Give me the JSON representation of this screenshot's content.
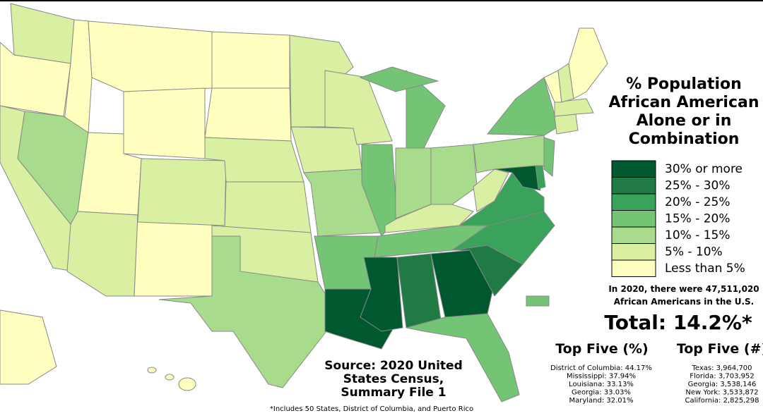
{
  "title_lines": [
    "% Population",
    "African American",
    "Alone or in",
    "Combination"
  ],
  "legend": [
    {
      "label": "30% or more",
      "color": "#00582f"
    },
    {
      "label": "25% - 30%",
      "color": "#1f7a44"
    },
    {
      "label": "20% - 25%",
      "color": "#3aa35b"
    },
    {
      "label": "15% - 20%",
      "color": "#74c476"
    },
    {
      "label": "10% - 15%",
      "color": "#a8dc8c"
    },
    {
      "label": "5% - 10%",
      "color": "#d9f0a3"
    },
    {
      "label": "Less than 5%",
      "color": "#ffffbf"
    }
  ],
  "note_lines": [
    "In 2020, there were 47,511,020",
    "African Americans in the U.S."
  ],
  "total": "Total: 14.2%*",
  "top_percent": {
    "title": "Top Five (%)",
    "items": [
      "District of Columbia: 44.17%",
      "Mississippi: 37.94%",
      "Louisiana: 33.13%",
      "Georgia: 33.03%",
      "Maryland: 32.01%"
    ]
  },
  "top_count": {
    "title": "Top Five (#)",
    "items": [
      "Texas: 3,964,700",
      "Florida: 3,703,952",
      "Georgia: 3,538,146",
      "New York: 3,533,872",
      "California: 2,825,298"
    ]
  },
  "source_lines": [
    "Source: 2020 United",
    "States Census,",
    "Summary File 1"
  ],
  "footnote": "*Includes 50 States, District of Columbia, and Puerto Rico"
}
